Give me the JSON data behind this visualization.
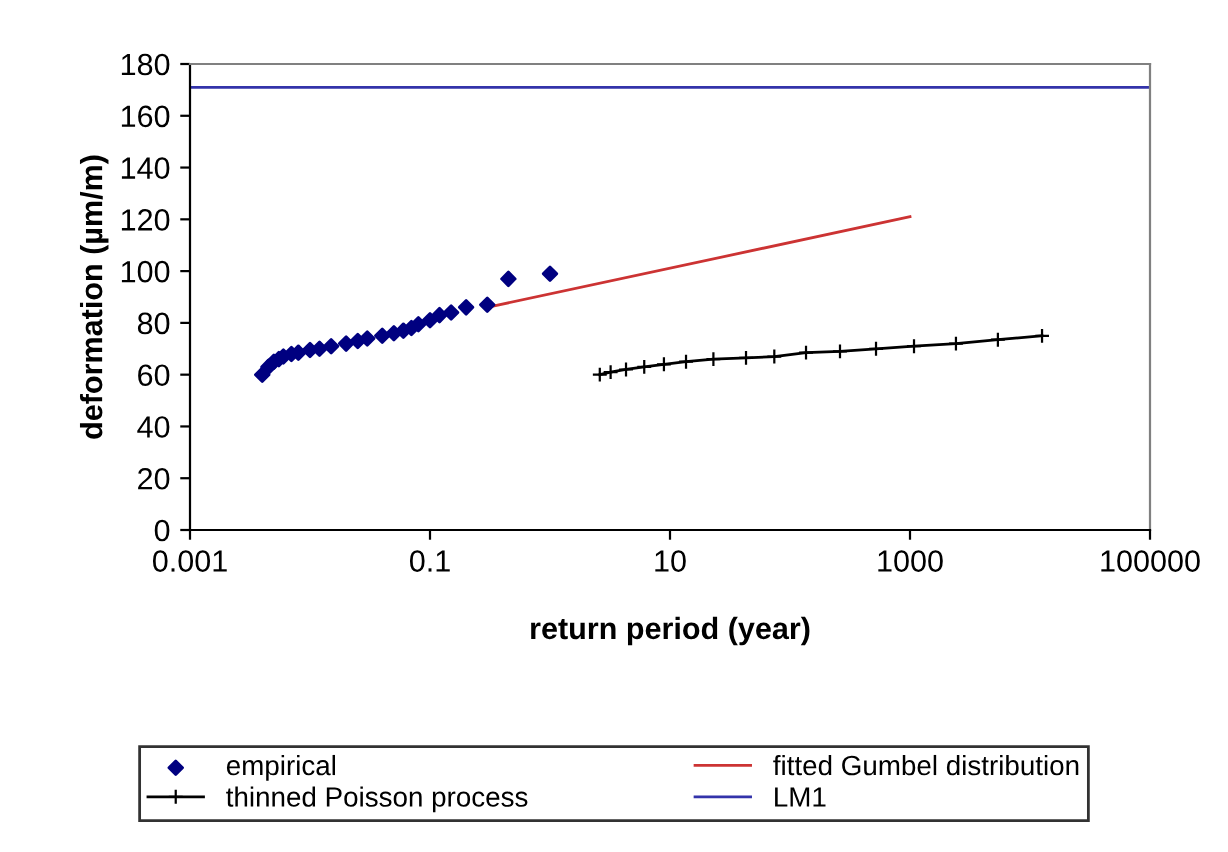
{
  "chart_data": {
    "type": "line",
    "xlabel": "return period (year)",
    "ylabel": "deformation (µm/m)",
    "log": "x",
    "xlim": [
      0.001,
      100000
    ],
    "xticks": [
      0.001,
      0.1,
      10,
      1000,
      100000
    ],
    "ylim": [
      0,
      180
    ],
    "yticks": [
      0,
      20,
      40,
      60,
      80,
      100,
      120,
      140,
      160,
      180
    ],
    "grid": false,
    "legend": "bottom",
    "series": [
      {
        "name": "empirical",
        "type": "scatter",
        "marker": "diamond",
        "color": "#000080",
        "x": [
          0.004,
          0.0045,
          0.005,
          0.0055,
          0.006,
          0.007,
          0.008,
          0.01,
          0.012,
          0.015,
          0.02,
          0.025,
          0.03,
          0.04,
          0.05,
          0.06,
          0.07,
          0.08,
          0.1,
          0.12,
          0.15,
          0.2,
          0.3,
          0.45,
          1
        ],
        "values": [
          60,
          63,
          65,
          66,
          67,
          68,
          68.5,
          69.5,
          70,
          71,
          72,
          73,
          74,
          75,
          76,
          77,
          78,
          79.5,
          81,
          83,
          84,
          86,
          87,
          97,
          99
        ]
      },
      {
        "name": "fitted Gumbel distribution",
        "marker": "none",
        "color": "#cc3333",
        "x": [
          0.3,
          1000
        ],
        "values": [
          86,
          121
        ]
      },
      {
        "name": "thinned Poisson process",
        "marker": "cross",
        "color": "#000000",
        "x": [
          2.6,
          3.2,
          4.3,
          6.1,
          8.9,
          13.6,
          23,
          43,
          74,
          136,
          261,
          521,
          1080,
          2415,
          5400,
          12600
        ],
        "values": [
          60,
          61,
          62,
          63,
          64,
          65,
          66,
          66.5,
          67,
          68.5,
          69,
          70,
          71,
          72,
          73.5,
          75
        ]
      },
      {
        "name": "LM1",
        "marker": "none",
        "color": "#3333aa",
        "x": [
          0.001,
          100000
        ],
        "values": [
          171,
          171
        ]
      }
    ]
  }
}
